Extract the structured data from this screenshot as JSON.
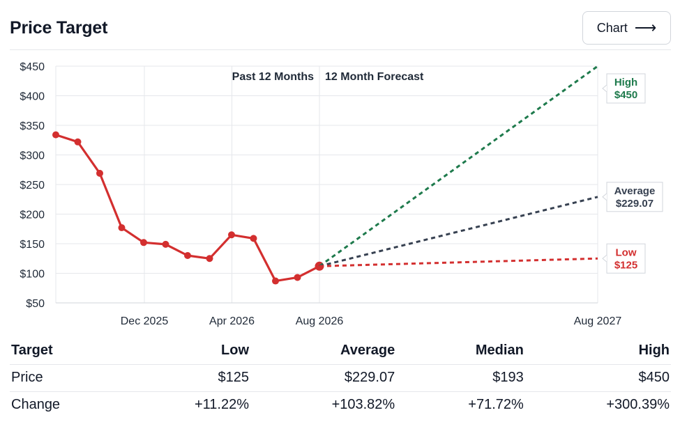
{
  "header": {
    "title": "Price Target",
    "chart_button_label": "Chart",
    "chart_button_icon": "arrow-right-icon"
  },
  "chart_data": {
    "type": "line",
    "section_labels": [
      "Past 12 Months",
      "12 Month Forecast"
    ],
    "y_ticks": [
      "$450",
      "$400",
      "$350",
      "$300",
      "$250",
      "$200",
      "$150",
      "$100",
      "$50"
    ],
    "ylim": [
      50,
      450
    ],
    "x_ticks": [
      "Dec 2025",
      "Apr 2026",
      "Aug 2026",
      "Aug 2027"
    ],
    "grid": true,
    "history": {
      "color": "#d32f2f",
      "points": [
        {
          "x": "Oct 2025",
          "y": 334
        },
        {
          "x": "Nov 2025",
          "y": 322
        },
        {
          "x": "Nov 2025",
          "y": 269
        },
        {
          "x": "Dec 2025",
          "y": 177
        },
        {
          "x": "Dec 2025",
          "y": 152
        },
        {
          "x": "Jan 2026",
          "y": 149
        },
        {
          "x": "Mar 2026",
          "y": 130
        },
        {
          "x": "Mar 2026",
          "y": 125
        },
        {
          "x": "Apr 2026",
          "y": 165
        },
        {
          "x": "May 2026",
          "y": 159
        },
        {
          "x": "Jul 2026",
          "y": 87
        },
        {
          "x": "Jul 2026",
          "y": 93
        },
        {
          "x": "Aug 2026",
          "y": 112
        }
      ]
    },
    "forecast": [
      {
        "name": "High",
        "value": 450,
        "label": "$450",
        "color": "#1e7a4c"
      },
      {
        "name": "Average",
        "value": 229.07,
        "label": "$229.07",
        "color": "#374151"
      },
      {
        "name": "Low",
        "value": 125,
        "label": "$125",
        "color": "#d32f2f"
      }
    ]
  },
  "table": {
    "headers": [
      "Target",
      "Low",
      "Average",
      "Median",
      "High"
    ],
    "rows": [
      {
        "label": "Price",
        "values": [
          "$125",
          "$229.07",
          "$193",
          "$450"
        ],
        "positive": false
      },
      {
        "label": "Change",
        "values": [
          "+11.22%",
          "+103.82%",
          "+71.72%",
          "+300.39%"
        ],
        "positive": true
      }
    ]
  }
}
